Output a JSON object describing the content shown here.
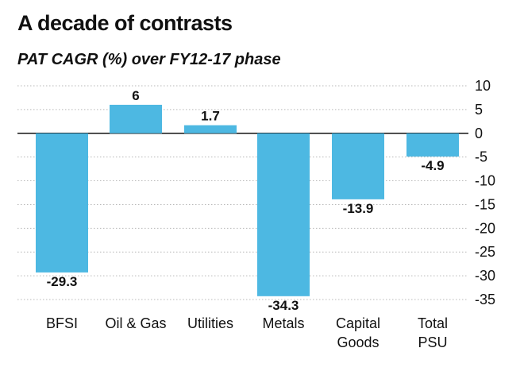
{
  "header": {
    "title": "A decade of contrasts",
    "subtitle": "PAT CAGR (%) over FY12-17 phase"
  },
  "chart_data": {
    "type": "bar",
    "categories": [
      [
        "BFSI"
      ],
      [
        "Oil & Gas"
      ],
      [
        "Utilities"
      ],
      [
        "Metals"
      ],
      [
        "Capital",
        "Goods"
      ],
      [
        "Total",
        "PSU"
      ]
    ],
    "values": [
      -29.3,
      6,
      1.7,
      -34.3,
      -13.9,
      -4.9
    ],
    "data_labels": [
      "-29.3",
      "6",
      "1.7",
      "-34.3",
      "-13.9",
      "-4.9"
    ],
    "ylim": [
      -35,
      10
    ],
    "yticks": [
      10,
      5,
      0,
      -5,
      -10,
      -15,
      -20,
      -25,
      -30,
      -35
    ],
    "ytick_labels": [
      "10",
      "5",
      "0",
      "-5",
      "-10",
      "-15",
      "-20",
      "-25",
      "-30",
      "-35"
    ],
    "grid": true,
    "bar_color": "#4db8e2",
    "grid_color": "#b8b8b8"
  }
}
